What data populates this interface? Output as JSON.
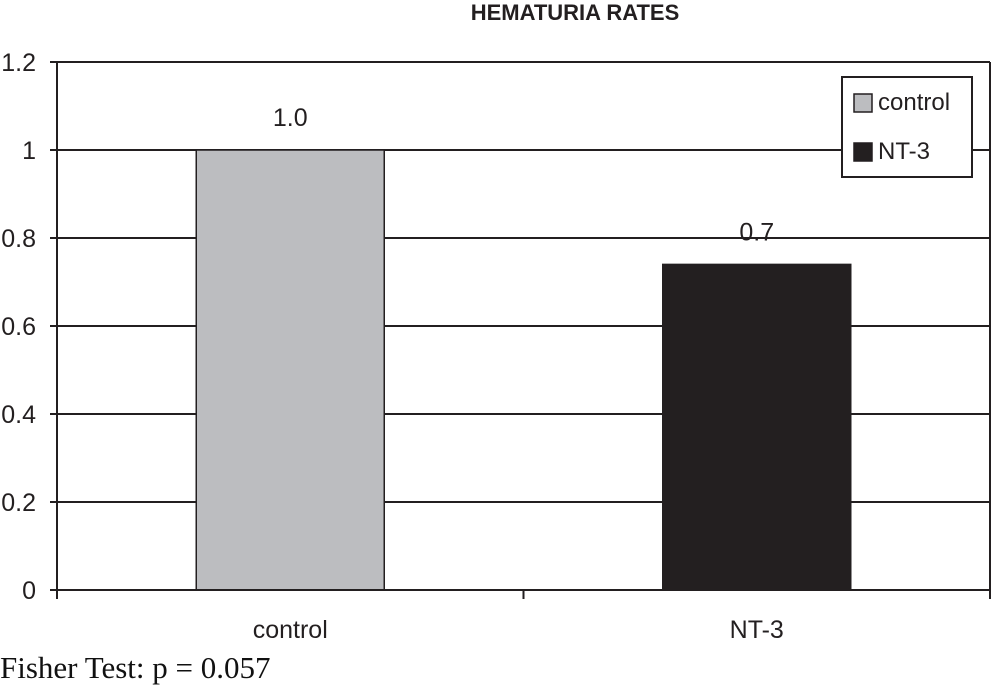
{
  "chart_data": {
    "type": "bar",
    "title": "HEMATURIA RATES",
    "categories": [
      "control",
      "NT-3"
    ],
    "values": [
      1.0,
      0.74
    ],
    "data_labels": [
      "1.0",
      "0.7"
    ],
    "bar_colors": [
      "#bcbdc0",
      "#231f20"
    ],
    "xlabel": "",
    "ylabel": "",
    "ylim": [
      0,
      1.2
    ],
    "yticks": [
      0,
      0.2,
      0.4,
      0.6,
      0.8,
      1,
      1.2
    ],
    "ytick_labels": [
      "0",
      "0.2",
      "0.4",
      "0.6",
      "0.8",
      "1",
      "1.2"
    ],
    "grid": true,
    "legend": {
      "placement": "top-right",
      "entries": [
        {
          "label": "control",
          "color": "#bcbdc0"
        },
        {
          "label": "NT-3",
          "color": "#231f20"
        }
      ]
    }
  },
  "footer": {
    "note": "Fisher Test: p = 0.057"
  }
}
